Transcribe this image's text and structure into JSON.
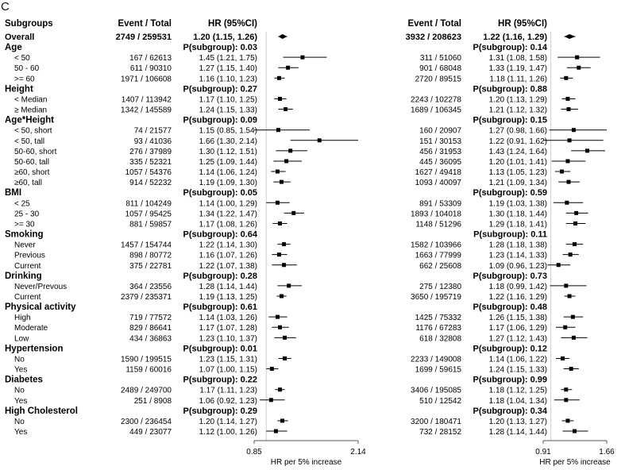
{
  "panel_label": "C",
  "chart_data": {
    "type": "forest",
    "headers": {
      "subgroups": "Subgroups",
      "event_total": "Event / Total",
      "hr": "HR (95%CI)"
    },
    "row_labels": [
      {
        "label": "Overall",
        "kind": "overall"
      },
      {
        "label": "Age",
        "kind": "group"
      },
      {
        "label": "< 50",
        "kind": "sub"
      },
      {
        "label": "50 - 60",
        "kind": "sub"
      },
      {
        "label": ">= 60",
        "kind": "sub"
      },
      {
        "label": "Height",
        "kind": "group"
      },
      {
        "label": "< Median",
        "kind": "sub"
      },
      {
        "label": "≥ Median",
        "kind": "sub"
      },
      {
        "label": "Age*Height",
        "kind": "group"
      },
      {
        "label": "< 50, short",
        "kind": "sub"
      },
      {
        "label": "< 50, tall",
        "kind": "sub"
      },
      {
        "label": "50-60, short",
        "kind": "sub"
      },
      {
        "label": "50-60, tall",
        "kind": "sub"
      },
      {
        "label": "≥60, short",
        "kind": "sub"
      },
      {
        "label": "≥60, tall",
        "kind": "sub"
      },
      {
        "label": "BMI",
        "kind": "group"
      },
      {
        "label": "< 25",
        "kind": "sub"
      },
      {
        "label": "25 - 30",
        "kind": "sub"
      },
      {
        "label": ">= 30",
        "kind": "sub"
      },
      {
        "label": "Smoking",
        "kind": "group"
      },
      {
        "label": "Never",
        "kind": "sub"
      },
      {
        "label": "Previous",
        "kind": "sub"
      },
      {
        "label": "Current",
        "kind": "sub"
      },
      {
        "label": "Drinking",
        "kind": "group"
      },
      {
        "label": "Never/Prevous",
        "kind": "sub"
      },
      {
        "label": "Current",
        "kind": "sub"
      },
      {
        "label": "Physical activity",
        "kind": "group"
      },
      {
        "label": "High",
        "kind": "sub"
      },
      {
        "label": "Moderate",
        "kind": "sub"
      },
      {
        "label": "Low",
        "kind": "sub"
      },
      {
        "label": "Hypertension",
        "kind": "group"
      },
      {
        "label": "No",
        "kind": "sub"
      },
      {
        "label": "Yes",
        "kind": "sub"
      },
      {
        "label": "Diabetes",
        "kind": "group"
      },
      {
        "label": "No",
        "kind": "sub"
      },
      {
        "label": "Yes",
        "kind": "sub"
      },
      {
        "label": "High Cholesterol",
        "kind": "group"
      },
      {
        "label": "No",
        "kind": "sub"
      },
      {
        "label": "Yes",
        "kind": "sub"
      }
    ],
    "panels": [
      {
        "xlabel": "HR per 5% increase",
        "xlim": [
          0.85,
          2.14
        ],
        "ticks": [
          "0.85",
          "2.14"
        ],
        "ref_line": 1,
        "rows": [
          {
            "et": "2749 / 259531",
            "text": "1.20 (1.15, 1.26)",
            "hr": 1.2,
            "lo": 1.15,
            "hi": 1.26
          },
          {
            "text": "P(subgroup): 0.03"
          },
          {
            "et": "167 / 62613",
            "text": "1.45 (1.21, 1.75)",
            "hr": 1.45,
            "lo": 1.21,
            "hi": 1.75
          },
          {
            "et": "611 / 90310",
            "text": "1.27 (1.15, 1.40)",
            "hr": 1.27,
            "lo": 1.15,
            "hi": 1.4
          },
          {
            "et": "1971 / 106608",
            "text": "1.16 (1.10, 1.23)",
            "hr": 1.16,
            "lo": 1.1,
            "hi": 1.23
          },
          {
            "text": "P(subgroup): 0.27"
          },
          {
            "et": "1407 / 113942",
            "text": "1.17 (1.10, 1.25)",
            "hr": 1.17,
            "lo": 1.1,
            "hi": 1.25
          },
          {
            "et": "1342 / 145589",
            "text": "1.24 (1.15, 1.33)",
            "hr": 1.24,
            "lo": 1.15,
            "hi": 1.33
          },
          {
            "text": "P(subgroup): 0.09"
          },
          {
            "et": "74 / 21577",
            "text": "1.15 (0.85, 1.54)",
            "hr": 1.15,
            "lo": 0.85,
            "hi": 1.54
          },
          {
            "et": "93 / 41036",
            "text": "1.66 (1.30, 2.14)",
            "hr": 1.66,
            "lo": 1.3,
            "hi": 2.14
          },
          {
            "et": "276 / 37989",
            "text": "1.30 (1.12, 1.51)",
            "hr": 1.3,
            "lo": 1.12,
            "hi": 1.51
          },
          {
            "et": "335 / 52321",
            "text": "1.25 (1.09, 1.44)",
            "hr": 1.25,
            "lo": 1.09,
            "hi": 1.44
          },
          {
            "et": "1057 / 54376",
            "text": "1.14 (1.06, 1.24)",
            "hr": 1.14,
            "lo": 1.06,
            "hi": 1.24
          },
          {
            "et": "914 / 52232",
            "text": "1.19 (1.09, 1.30)",
            "hr": 1.19,
            "lo": 1.09,
            "hi": 1.3
          },
          {
            "text": "P(subgroup): 0.05"
          },
          {
            "et": "811 / 104249",
            "text": "1.14 (1.00, 1.29)",
            "hr": 1.14,
            "lo": 1.0,
            "hi": 1.29
          },
          {
            "et": "1057 / 95425",
            "text": "1.34 (1.22, 1.47)",
            "hr": 1.34,
            "lo": 1.22,
            "hi": 1.47
          },
          {
            "et": "881 / 59857",
            "text": "1.17 (1.08, 1.26)",
            "hr": 1.17,
            "lo": 1.08,
            "hi": 1.26
          },
          {
            "text": "P(subgroup): 0.64"
          },
          {
            "et": "1457 / 154744",
            "text": "1.22 (1.14, 1.30)",
            "hr": 1.22,
            "lo": 1.14,
            "hi": 1.3
          },
          {
            "et": "898 / 80772",
            "text": "1.16 (1.07, 1.26)",
            "hr": 1.16,
            "lo": 1.07,
            "hi": 1.26
          },
          {
            "et": "375 / 22781",
            "text": "1.22 (1.07, 1.38)",
            "hr": 1.22,
            "lo": 1.07,
            "hi": 1.38
          },
          {
            "text": "P(subgroup): 0.28"
          },
          {
            "et": "364 / 23556",
            "text": "1.28 (1.14, 1.44)",
            "hr": 1.28,
            "lo": 1.14,
            "hi": 1.44
          },
          {
            "et": "2379 / 235371",
            "text": "1.19 (1.13, 1.25)",
            "hr": 1.19,
            "lo": 1.13,
            "hi": 1.25
          },
          {
            "text": "P(subgroup): 0.61"
          },
          {
            "et": "719 / 77572",
            "text": "1.14 (1.03, 1.26)",
            "hr": 1.14,
            "lo": 1.03,
            "hi": 1.26
          },
          {
            "et": "829 / 86641",
            "text": "1.17 (1.07, 1.28)",
            "hr": 1.17,
            "lo": 1.07,
            "hi": 1.28
          },
          {
            "et": "434 / 36863",
            "text": "1.23 (1.10, 1.37)",
            "hr": 1.23,
            "lo": 1.1,
            "hi": 1.37
          },
          {
            "text": "P(subgroup): 0.01"
          },
          {
            "et": "1590 / 199515",
            "text": "1.23 (1.15, 1.31)",
            "hr": 1.23,
            "lo": 1.15,
            "hi": 1.31
          },
          {
            "et": "1159 / 60016",
            "text": "1.07 (1.00, 1.15)",
            "hr": 1.07,
            "lo": 1.0,
            "hi": 1.15
          },
          {
            "text": "P(subgroup): 0.22"
          },
          {
            "et": "2489 / 249700",
            "text": "1.17 (1.11, 1.23)",
            "hr": 1.17,
            "lo": 1.11,
            "hi": 1.23
          },
          {
            "et": "251 / 8908",
            "text": "1.06 (0.92, 1.23)",
            "hr": 1.06,
            "lo": 0.92,
            "hi": 1.23
          },
          {
            "text": "P(subgroup): 0.29"
          },
          {
            "et": "2300 / 236454",
            "text": "1.20 (1.14, 1.27)",
            "hr": 1.2,
            "lo": 1.14,
            "hi": 1.27
          },
          {
            "et": "449 / 23077",
            "text": "1.12 (1.00, 1.26)",
            "hr": 1.12,
            "lo": 1.0,
            "hi": 1.26
          }
        ]
      },
      {
        "xlabel": "HR per 5% increase",
        "xlim": [
          0.91,
          1.66
        ],
        "ticks": [
          "0.91",
          "1.66"
        ],
        "ref_line": 1,
        "rows": [
          {
            "et": "3932 / 208623",
            "text": "1.22 (1.16, 1.29)",
            "hr": 1.22,
            "lo": 1.16,
            "hi": 1.29
          },
          {
            "text": "P(subgroup): 0.14"
          },
          {
            "et": "311 / 51060",
            "text": "1.31 (1.08, 1.58)",
            "hr": 1.31,
            "lo": 1.08,
            "hi": 1.58
          },
          {
            "et": "901 / 68048",
            "text": "1.33 (1.19, 1.47)",
            "hr": 1.33,
            "lo": 1.19,
            "hi": 1.47
          },
          {
            "et": "2720 / 89515",
            "text": "1.18 (1.11, 1.26)",
            "hr": 1.18,
            "lo": 1.11,
            "hi": 1.26
          },
          {
            "text": "P(subgroup): 0.88"
          },
          {
            "et": "2243 / 102278",
            "text": "1.20 (1.13, 1.29)",
            "hr": 1.2,
            "lo": 1.13,
            "hi": 1.29
          },
          {
            "et": "1689 / 106345",
            "text": "1.21 (1.12, 1.32)",
            "hr": 1.21,
            "lo": 1.12,
            "hi": 1.32
          },
          {
            "text": "P(subgroup): 0.15"
          },
          {
            "et": "160 / 20907",
            "text": "1.27 (0.98, 1.66)",
            "hr": 1.27,
            "lo": 0.98,
            "hi": 1.66
          },
          {
            "et": "151 / 30153",
            "text": "1.22 (0.91, 1.62)",
            "hr": 1.22,
            "lo": 0.91,
            "hi": 1.62
          },
          {
            "et": "456 / 31953",
            "text": "1.43 (1.24, 1.64)",
            "hr": 1.43,
            "lo": 1.24,
            "hi": 1.64
          },
          {
            "et": "445 / 36095",
            "text": "1.20 (1.01, 1.41)",
            "hr": 1.2,
            "lo": 1.01,
            "hi": 1.41
          },
          {
            "et": "1627 / 49418",
            "text": "1.13 (1.05, 1.23)",
            "hr": 1.13,
            "lo": 1.05,
            "hi": 1.23
          },
          {
            "et": "1093 / 40097",
            "text": "1.21 (1.09, 1.34)",
            "hr": 1.21,
            "lo": 1.09,
            "hi": 1.34
          },
          {
            "text": "P(subgroup): 0.59"
          },
          {
            "et": "891 / 53309",
            "text": "1.19 (1.03, 1.38)",
            "hr": 1.19,
            "lo": 1.03,
            "hi": 1.38
          },
          {
            "et": "1893 / 104018",
            "text": "1.30 (1.18, 1.44)",
            "hr": 1.3,
            "lo": 1.18,
            "hi": 1.44
          },
          {
            "et": "1148 / 51296",
            "text": "1.29 (1.18, 1.41)",
            "hr": 1.29,
            "lo": 1.18,
            "hi": 1.41
          },
          {
            "text": "P(subgroup): 0.11"
          },
          {
            "et": "1582 / 103966",
            "text": "1.28 (1.18, 1.38)",
            "hr": 1.28,
            "lo": 1.18,
            "hi": 1.38
          },
          {
            "et": "1663 / 77999",
            "text": "1.23 (1.14, 1.33)",
            "hr": 1.23,
            "lo": 1.14,
            "hi": 1.33
          },
          {
            "et": "662 / 25608",
            "text": "1.09 (0.96, 1.23)",
            "hr": 1.09,
            "lo": 0.96,
            "hi": 1.23
          },
          {
            "text": "P(subgroup): 0.73"
          },
          {
            "et": "275 / 12380",
            "text": "1.18 (0.99, 1.42)",
            "hr": 1.18,
            "lo": 0.99,
            "hi": 1.42
          },
          {
            "et": "3650 / 195719",
            "text": "1.22 (1.16, 1.29)",
            "hr": 1.22,
            "lo": 1.16,
            "hi": 1.29
          },
          {
            "text": "P(subgroup): 0.48"
          },
          {
            "et": "1425 / 75332",
            "text": "1.26 (1.15, 1.38)",
            "hr": 1.26,
            "lo": 1.15,
            "hi": 1.38
          },
          {
            "et": "1176 / 67283",
            "text": "1.17 (1.06, 1.29)",
            "hr": 1.17,
            "lo": 1.06,
            "hi": 1.29
          },
          {
            "et": "618 / 32808",
            "text": "1.27 (1.12, 1.43)",
            "hr": 1.27,
            "lo": 1.12,
            "hi": 1.43
          },
          {
            "text": "P(subgroup): 0.12"
          },
          {
            "et": "2233 / 149008",
            "text": "1.14 (1.06, 1.22)",
            "hr": 1.14,
            "lo": 1.06,
            "hi": 1.22
          },
          {
            "et": "1699 / 59615",
            "text": "1.24 (1.15, 1.33)",
            "hr": 1.24,
            "lo": 1.15,
            "hi": 1.33
          },
          {
            "text": "P(subgroup): 0.99"
          },
          {
            "et": "3406 / 195085",
            "text": "1.18 (1.12, 1.25)",
            "hr": 1.18,
            "lo": 1.12,
            "hi": 1.25
          },
          {
            "et": "510 / 12542",
            "text": "1.18 (1.04, 1.34)",
            "hr": 1.18,
            "lo": 1.04,
            "hi": 1.34
          },
          {
            "text": "P(subgroup): 0.34"
          },
          {
            "et": "3200 / 180471",
            "text": "1.20 (1.13, 1.27)",
            "hr": 1.2,
            "lo": 1.13,
            "hi": 1.27
          },
          {
            "et": "732 / 28152",
            "text": "1.28 (1.14, 1.44)",
            "hr": 1.28,
            "lo": 1.14,
            "hi": 1.44
          }
        ]
      }
    ]
  }
}
